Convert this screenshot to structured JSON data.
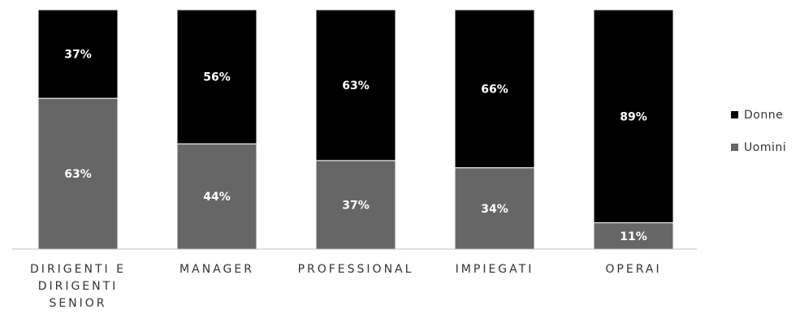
{
  "chart_data": {
    "type": "bar",
    "stacked": true,
    "percent": true,
    "categories": [
      "DIRIGENTI E DIRIGENTI SENIOR",
      "MANAGER",
      "PROFESSIONAL",
      "IMPIEGATI",
      "OPERAI"
    ],
    "category_lines": [
      [
        "DIRIGENTI E",
        "DIRIGENTI",
        "SENIOR"
      ],
      [
        "MANAGER"
      ],
      [
        "PROFESSIONAL"
      ],
      [
        "IMPIEGATI"
      ],
      [
        "OPERAI"
      ]
    ],
    "series": [
      {
        "name": "Uomini",
        "values": [
          63,
          44,
          37,
          34,
          11
        ],
        "labels": [
          "63%",
          "44%",
          "37%",
          "34%",
          "11%"
        ],
        "color": "#666666"
      },
      {
        "name": "Donne",
        "values": [
          37,
          56,
          63,
          66,
          89
        ],
        "labels": [
          "37%",
          "56%",
          "63%",
          "66%",
          "89%"
        ],
        "color": "#000000"
      }
    ],
    "legend_order": [
      "Donne",
      "Uomini"
    ],
    "legend_position": "right",
    "ylim": [
      0,
      100
    ],
    "grid": false
  }
}
